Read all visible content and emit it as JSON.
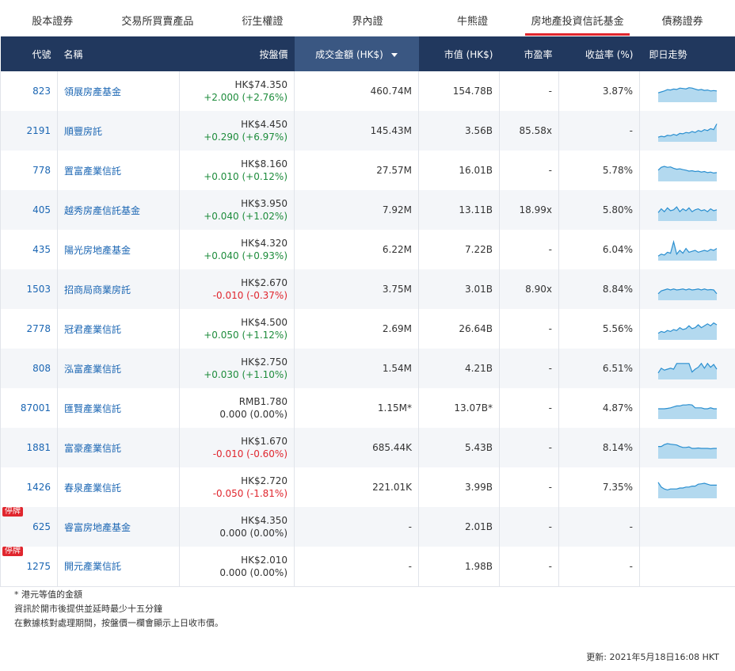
{
  "tabs": [
    {
      "label": "股本證券",
      "active": false
    },
    {
      "label": "交易所買賣產品",
      "active": false
    },
    {
      "label": "衍生權證",
      "active": false
    },
    {
      "label": "界內證",
      "active": false
    },
    {
      "label": "牛熊證",
      "active": false
    },
    {
      "label": "房地產投資信託基金",
      "active": true
    },
    {
      "label": "債務證券",
      "active": false
    }
  ],
  "table": {
    "headers": {
      "code": "代號",
      "name": "名稱",
      "price": "按盤價",
      "turnover": "成交金額 (HK$)",
      "mktcap": "市值 (HK$)",
      "pe": "市盈率",
      "yield": "收益率 (%)",
      "chart": "即日走勢"
    },
    "halt_label": "停牌",
    "rows": [
      {
        "code": "823",
        "name": "領展房產基金",
        "price": "HK$74.350",
        "change": "+2.000 (+2.76%)",
        "dir": "up",
        "turnover": "460.74M",
        "mktcap": "154.78B",
        "pe": "-",
        "yield": "3.87%",
        "halted": false,
        "spark": [
          0.45,
          0.5,
          0.55,
          0.62,
          0.6,
          0.65,
          0.63,
          0.7,
          0.68,
          0.66,
          0.72,
          0.7,
          0.65,
          0.6,
          0.63,
          0.58,
          0.6,
          0.55,
          0.57,
          0.55
        ]
      },
      {
        "code": "2191",
        "name": "順豐房託",
        "price": "HK$4.450",
        "change": "+0.290 (+6.97%)",
        "dir": "up",
        "turnover": "145.43M",
        "mktcap": "3.56B",
        "pe": "85.58x",
        "yield": "-",
        "halted": false,
        "spark": [
          0.2,
          0.25,
          0.22,
          0.3,
          0.28,
          0.35,
          0.3,
          0.4,
          0.38,
          0.45,
          0.42,
          0.5,
          0.45,
          0.55,
          0.5,
          0.6,
          0.55,
          0.65,
          0.6,
          0.9
        ]
      },
      {
        "code": "778",
        "name": "置富產業信託",
        "price": "HK$8.160",
        "change": "+0.010 (+0.12%)",
        "dir": "up",
        "turnover": "27.57M",
        "mktcap": "16.01B",
        "pe": "-",
        "yield": "5.78%",
        "halted": false,
        "spark": [
          0.55,
          0.7,
          0.75,
          0.7,
          0.72,
          0.65,
          0.6,
          0.62,
          0.58,
          0.55,
          0.5,
          0.52,
          0.48,
          0.5,
          0.45,
          0.48,
          0.42,
          0.45,
          0.4,
          0.42
        ]
      },
      {
        "code": "405",
        "name": "越秀房產信託基金",
        "price": "HK$3.950",
        "change": "+0.040 (+1.02%)",
        "dir": "up",
        "turnover": "7.92M",
        "mktcap": "13.11B",
        "pe": "18.99x",
        "yield": "5.80%",
        "halted": false,
        "spark": [
          0.4,
          0.6,
          0.45,
          0.65,
          0.5,
          0.55,
          0.7,
          0.45,
          0.6,
          0.5,
          0.65,
          0.45,
          0.55,
          0.6,
          0.5,
          0.55,
          0.45,
          0.6,
          0.5,
          0.55
        ]
      },
      {
        "code": "435",
        "name": "陽光房地產基金",
        "price": "HK$4.320",
        "change": "+0.040 (+0.93%)",
        "dir": "up",
        "turnover": "6.22M",
        "mktcap": "7.22B",
        "pe": "-",
        "yield": "6.04%",
        "halted": false,
        "spark": [
          0.2,
          0.3,
          0.25,
          0.4,
          0.35,
          0.95,
          0.3,
          0.5,
          0.35,
          0.6,
          0.4,
          0.45,
          0.5,
          0.4,
          0.45,
          0.5,
          0.45,
          0.55,
          0.5,
          0.6
        ]
      },
      {
        "code": "1503",
        "name": "招商局商業房託",
        "price": "HK$2.670",
        "change": "-0.010 (-0.37%)",
        "dir": "down",
        "turnover": "3.75M",
        "mktcap": "3.01B",
        "pe": "8.90x",
        "yield": "8.84%",
        "halted": false,
        "spark": [
          0.3,
          0.45,
          0.5,
          0.55,
          0.5,
          0.55,
          0.5,
          0.52,
          0.55,
          0.5,
          0.55,
          0.5,
          0.52,
          0.55,
          0.5,
          0.55,
          0.5,
          0.52,
          0.5,
          0.3
        ]
      },
      {
        "code": "2778",
        "name": "冠君產業信託",
        "price": "HK$4.500",
        "change": "+0.050 (+1.12%)",
        "dir": "up",
        "turnover": "2.69M",
        "mktcap": "26.64B",
        "pe": "-",
        "yield": "5.56%",
        "halted": false,
        "spark": [
          0.3,
          0.4,
          0.35,
          0.45,
          0.4,
          0.5,
          0.45,
          0.6,
          0.5,
          0.55,
          0.7,
          0.55,
          0.6,
          0.75,
          0.6,
          0.7,
          0.8,
          0.7,
          0.85,
          0.75
        ]
      },
      {
        "code": "808",
        "name": "泓富產業信託",
        "price": "HK$2.750",
        "change": "+0.030 (+1.10%)",
        "dir": "up",
        "turnover": "1.54M",
        "mktcap": "4.21B",
        "pe": "-",
        "yield": "6.51%",
        "halted": false,
        "spark": [
          0.3,
          0.55,
          0.45,
          0.5,
          0.55,
          0.5,
          0.8,
          0.8,
          0.8,
          0.8,
          0.8,
          0.35,
          0.5,
          0.6,
          0.8,
          0.55,
          0.8,
          0.6,
          0.75,
          0.5
        ]
      },
      {
        "code": "87001",
        "name": "匯賢產業信託",
        "price": "RMB1.780",
        "change": "0.000 (0.00%)",
        "dir": "flat",
        "turnover": "1.15M*",
        "mktcap": "13.07B*",
        "pe": "-",
        "yield": "4.87%",
        "halted": false,
        "spark": [
          0.5,
          0.5,
          0.5,
          0.52,
          0.55,
          0.6,
          0.65,
          0.65,
          0.7,
          0.7,
          0.72,
          0.7,
          0.55,
          0.55,
          0.55,
          0.5,
          0.5,
          0.55,
          0.5,
          0.5
        ]
      },
      {
        "code": "1881",
        "name": "富豪產業信託",
        "price": "HK$1.670",
        "change": "-0.010 (-0.60%)",
        "dir": "down",
        "turnover": "685.44K",
        "mktcap": "5.43B",
        "pe": "-",
        "yield": "8.14%",
        "halted": false,
        "spark": [
          0.6,
          0.6,
          0.7,
          0.75,
          0.72,
          0.7,
          0.68,
          0.6,
          0.55,
          0.55,
          0.58,
          0.5,
          0.5,
          0.52,
          0.5,
          0.5,
          0.5,
          0.48,
          0.5,
          0.5
        ]
      },
      {
        "code": "1426",
        "name": "春泉產業信託",
        "price": "HK$2.720",
        "change": "-0.050 (-1.81%)",
        "dir": "down",
        "turnover": "221.01K",
        "mktcap": "3.99B",
        "pe": "-",
        "yield": "7.35%",
        "halted": false,
        "spark": [
          0.8,
          0.55,
          0.45,
          0.4,
          0.45,
          0.45,
          0.45,
          0.5,
          0.5,
          0.55,
          0.55,
          0.6,
          0.6,
          0.7,
          0.72,
          0.75,
          0.7,
          0.65,
          0.65,
          0.65
        ]
      },
      {
        "code": "625",
        "name": "睿富房地產基金",
        "price": "HK$4.350",
        "change": "0.000 (0.00%)",
        "dir": "flat",
        "turnover": "-",
        "mktcap": "2.01B",
        "pe": "-",
        "yield": "-",
        "halted": true,
        "spark": []
      },
      {
        "code": "1275",
        "name": "開元產業信託",
        "price": "HK$2.010",
        "change": "0.000 (0.00%)",
        "dir": "flat",
        "turnover": "-",
        "mktcap": "1.98B",
        "pe": "-",
        "yield": "-",
        "halted": true,
        "spark": []
      }
    ]
  },
  "notes": [
    "* 港元等值的金額",
    "資訊於開市後提供並延時最少十五分鐘",
    "在數據核對處理期間，按盤價一欄會顯示上日收市價。"
  ],
  "updated": "更新: 2021年5月18日16:08 HKT",
  "colors": {
    "header_bg": "#21385e",
    "sorted_header_bg": "#3a5782",
    "active_tab_underline": "#e0262e",
    "up": "#1e8c3c",
    "down": "#e0262e",
    "link": "#1b66b3",
    "spark_stroke": "#2a8fd0",
    "spark_fill": "#b3d9ef"
  }
}
